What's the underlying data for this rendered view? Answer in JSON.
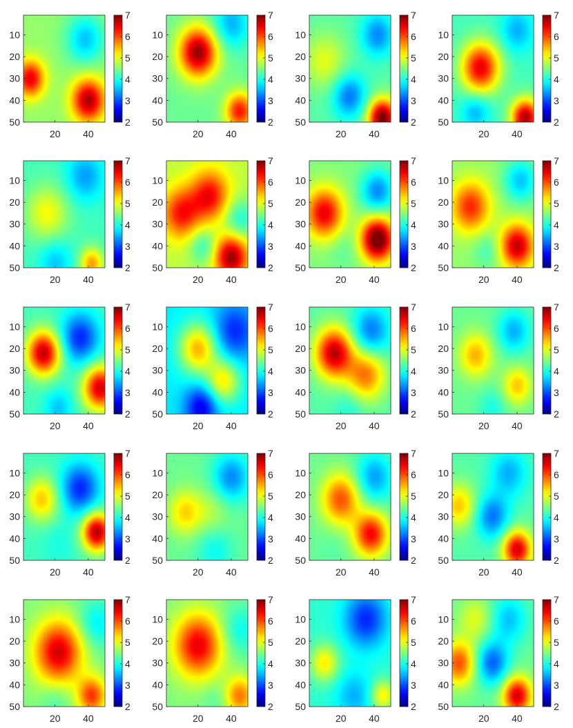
{
  "chart_data": {
    "type": "heatmap",
    "layout": {
      "rows": 5,
      "cols": 4
    },
    "colormap": "jet",
    "clim": [
      2,
      7
    ],
    "colorbar_ticks": [
      2,
      3,
      4,
      5,
      6,
      7
    ],
    "xlim": [
      1,
      50
    ],
    "ylim": [
      1,
      50
    ],
    "x_ticks": [
      20,
      40
    ],
    "y_ticks": [
      10,
      20,
      30,
      40,
      50
    ],
    "y_direction": "reverse",
    "panels": [
      {
        "base": 4.6,
        "blobs": [
          [
            5,
            30,
            6.5,
            6
          ],
          [
            40,
            40,
            6.8,
            7
          ],
          [
            38,
            12,
            3.6,
            8
          ]
        ]
      },
      {
        "base": 4.4,
        "blobs": [
          [
            20,
            18,
            6.9,
            8
          ],
          [
            45,
            45,
            6.3,
            6
          ],
          [
            40,
            5,
            3.5,
            8
          ]
        ]
      },
      {
        "base": 4.3,
        "blobs": [
          [
            10,
            22,
            5.0,
            9
          ],
          [
            42,
            10,
            3.3,
            7
          ],
          [
            25,
            38,
            3.2,
            7
          ],
          [
            45,
            48,
            7.1,
            6
          ]
        ]
      },
      {
        "base": 4.2,
        "blobs": [
          [
            18,
            25,
            6.5,
            8
          ],
          [
            45,
            48,
            6.8,
            6
          ],
          [
            40,
            8,
            3.5,
            7
          ],
          [
            15,
            45,
            3.5,
            6
          ]
        ]
      },
      {
        "base": 4.2,
        "blobs": [
          [
            15,
            25,
            5.1,
            9
          ],
          [
            38,
            8,
            3.4,
            8
          ],
          [
            42,
            48,
            5.6,
            5
          ],
          [
            20,
            47,
            3.6,
            7
          ]
        ]
      },
      {
        "base": 4.8,
        "blobs": [
          [
            10,
            25,
            6.3,
            8
          ],
          [
            27,
            17,
            6.4,
            8
          ],
          [
            40,
            45,
            6.9,
            7
          ],
          [
            45,
            28,
            4.0,
            7
          ],
          [
            23,
            40,
            4.1,
            6
          ]
        ]
      },
      {
        "base": 4.5,
        "blobs": [
          [
            10,
            25,
            6.5,
            8
          ],
          [
            42,
            37,
            7.3,
            7
          ],
          [
            42,
            15,
            3.3,
            7
          ],
          [
            22,
            40,
            4.3,
            7
          ]
        ]
      },
      {
        "base": 4.6,
        "blobs": [
          [
            12,
            22,
            6.2,
            8
          ],
          [
            40,
            40,
            6.7,
            7
          ],
          [
            42,
            10,
            3.6,
            7
          ],
          [
            22,
            42,
            4.2,
            6
          ]
        ]
      },
      {
        "base": 4.2,
        "blobs": [
          [
            13,
            22,
            6.7,
            7
          ],
          [
            35,
            15,
            2.8,
            8
          ],
          [
            47,
            38,
            6.6,
            7
          ],
          [
            22,
            47,
            3.6,
            6
          ]
        ]
      },
      {
        "base": 3.8,
        "blobs": [
          [
            20,
            20,
            5.5,
            8
          ],
          [
            35,
            35,
            5.2,
            7
          ],
          [
            42,
            12,
            2.8,
            9
          ],
          [
            22,
            47,
            2.5,
            7
          ]
        ]
      },
      {
        "base": 4.3,
        "blobs": [
          [
            16,
            22,
            6.7,
            8
          ],
          [
            35,
            32,
            5.8,
            8
          ],
          [
            38,
            12,
            3.2,
            8
          ],
          [
            25,
            47,
            4.0,
            6
          ]
        ]
      },
      {
        "base": 4.4,
        "blobs": [
          [
            15,
            23,
            5.5,
            7
          ],
          [
            40,
            37,
            5.4,
            6
          ],
          [
            38,
            12,
            3.5,
            7
          ],
          [
            25,
            47,
            4.0,
            6
          ]
        ]
      },
      {
        "base": 4.2,
        "blobs": [
          [
            12,
            22,
            5.4,
            7
          ],
          [
            45,
            37,
            6.8,
            6
          ],
          [
            35,
            17,
            2.8,
            8
          ],
          [
            22,
            42,
            4.0,
            7
          ]
        ]
      },
      {
        "base": 4.4,
        "blobs": [
          [
            12,
            28,
            5.3,
            7
          ],
          [
            40,
            12,
            3.3,
            8
          ],
          [
            30,
            45,
            3.9,
            8
          ],
          [
            28,
            28,
            4.8,
            8
          ]
        ]
      },
      {
        "base": 4.4,
        "blobs": [
          [
            20,
            22,
            6.0,
            8
          ],
          [
            38,
            38,
            6.4,
            7
          ],
          [
            40,
            12,
            3.4,
            8
          ],
          [
            15,
            45,
            4.3,
            6
          ]
        ]
      },
      {
        "base": 4.3,
        "blobs": [
          [
            5,
            25,
            5.4,
            7
          ],
          [
            25,
            30,
            3.2,
            7
          ],
          [
            40,
            45,
            6.6,
            6
          ],
          [
            35,
            10,
            3.5,
            8
          ]
        ]
      },
      {
        "base": 4.5,
        "blobs": [
          [
            22,
            25,
            6.6,
            10
          ],
          [
            42,
            45,
            6.1,
            6
          ],
          [
            45,
            12,
            3.8,
            8
          ],
          [
            20,
            47,
            4.2,
            6
          ]
        ]
      },
      {
        "base": 4.5,
        "blobs": [
          [
            20,
            22,
            6.5,
            10
          ],
          [
            45,
            45,
            5.8,
            6
          ],
          [
            45,
            15,
            3.9,
            8
          ],
          [
            30,
            47,
            4.3,
            6
          ]
        ]
      },
      {
        "base": 4.1,
        "blobs": [
          [
            35,
            10,
            2.8,
            9
          ],
          [
            10,
            30,
            5.2,
            6
          ],
          [
            45,
            45,
            5.2,
            5
          ],
          [
            28,
            45,
            3.5,
            8
          ]
        ]
      },
      {
        "base": 4.4,
        "blobs": [
          [
            5,
            30,
            6.0,
            7
          ],
          [
            25,
            30,
            3.1,
            7
          ],
          [
            40,
            45,
            6.6,
            6
          ],
          [
            35,
            10,
            3.6,
            8
          ],
          [
            15,
            10,
            5.0,
            7
          ]
        ]
      }
    ]
  }
}
